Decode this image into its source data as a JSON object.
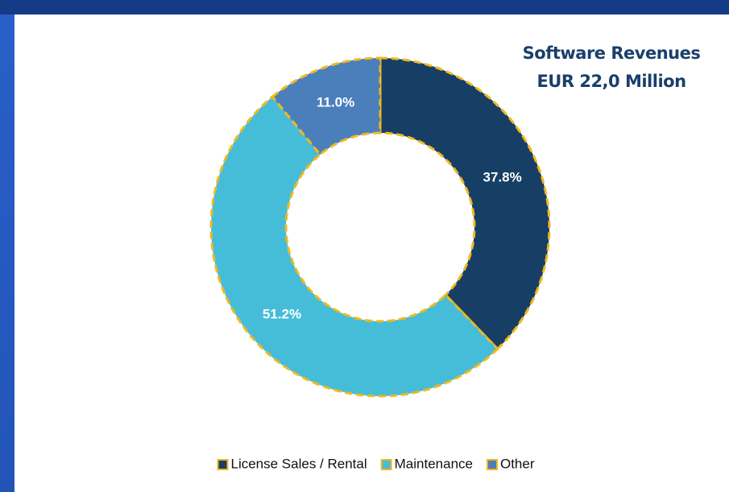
{
  "chart_data": {
    "type": "donut",
    "title": "Software Revenues",
    "subtitle": "EUR 22,0 Million",
    "categories": [
      "License Sales / Rental",
      "Maintenance",
      "Other"
    ],
    "values": [
      37.8,
      51.2,
      11.0
    ],
    "value_labels": [
      "37.8%",
      "51.2%",
      "11.0%"
    ],
    "colors": [
      "#173f66",
      "#45bdd9",
      "#4b7fbc"
    ],
    "border_color": "#f2b81c",
    "legend": "bottom"
  }
}
